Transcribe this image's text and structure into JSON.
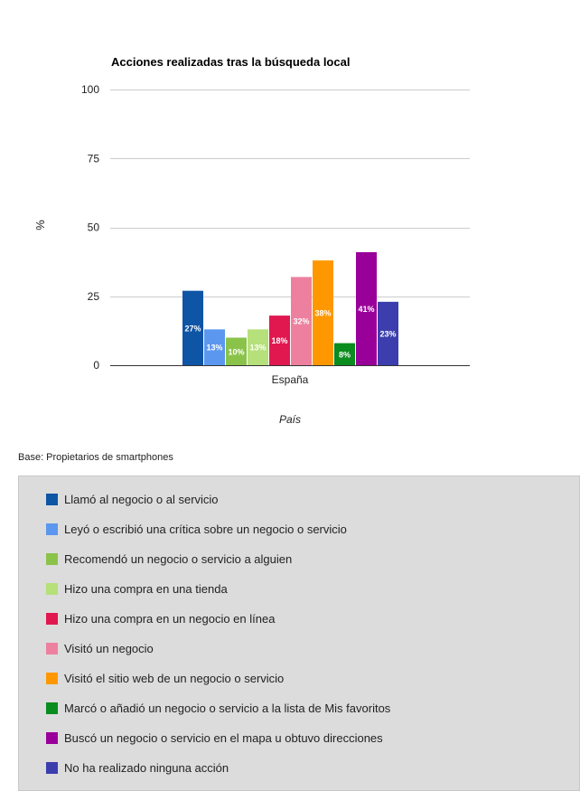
{
  "chart_data": {
    "type": "bar",
    "title": "Acciones realizadas tras la búsqueda local",
    "xlabel": "País",
    "ylabel": "%",
    "categories": [
      "España"
    ],
    "ylim": [
      0,
      100
    ],
    "yticks": [
      "0",
      "25",
      "50",
      "75",
      "100"
    ],
    "grid": true,
    "legend_position": "bottom",
    "series": [
      {
        "name": "Llamó al negocio o al servicio",
        "values": [
          27
        ],
        "label": "27%",
        "color": "#0f55a6"
      },
      {
        "name": "Leyó o escribió una crítica sobre un negocio o servicio",
        "values": [
          13
        ],
        "label": "13%",
        "color": "#5b97ee"
      },
      {
        "name": "Recomendó un negocio o servicio a alguien",
        "values": [
          10
        ],
        "label": "10%",
        "color": "#8bc34a"
      },
      {
        "name": "Hizo una compra en una tienda",
        "values": [
          13
        ],
        "label": "13%",
        "color": "#b5e07a"
      },
      {
        "name": "Hizo una compra en un negocio en línea",
        "values": [
          18
        ],
        "label": "18%",
        "color": "#e0184f"
      },
      {
        "name": "Visitó un negocio",
        "values": [
          32
        ],
        "label": "32%",
        "color": "#ee809f"
      },
      {
        "name": "Visitó el sitio web de un negocio o servicio",
        "values": [
          38
        ],
        "label": "38%",
        "color": "#ff9800"
      },
      {
        "name": "Marcó o añadió un negocio o servicio a la lista de Mis favoritos",
        "values": [
          8
        ],
        "label": "8%",
        "color": "#0b8c1e"
      },
      {
        "name": "Buscó un negocio o servicio en el mapa u obtuvo direcciones",
        "values": [
          41
        ],
        "label": "41%",
        "color": "#990099"
      },
      {
        "name": "No ha realizado ninguna acción",
        "values": [
          23
        ],
        "label": "23%",
        "color": "#3b3eac"
      }
    ]
  },
  "base_note": "Base: Propietarios de smartphones"
}
